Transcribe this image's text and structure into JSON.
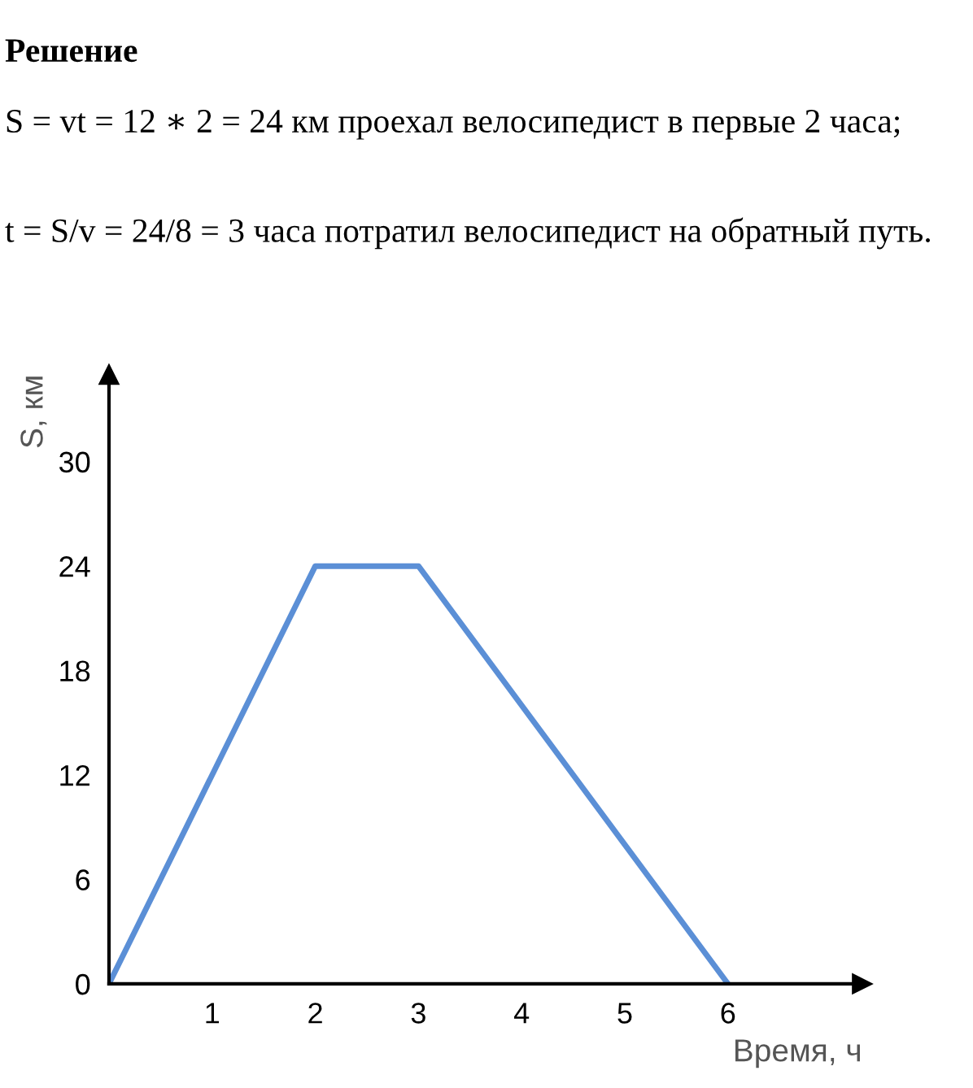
{
  "chart_data": {
    "type": "line",
    "title": "Решение",
    "annotations": [
      "S = vt = 12 ∗ 2 = 24 км проехал велосипедист в первые 2 часа;",
      "t = S/v = 24/8 = 3 часа потратил велосипедист на обратный путь."
    ],
    "x": [
      0,
      2,
      3,
      6
    ],
    "series": [
      {
        "color": "#5b8fd6",
        "values": [
          0,
          24,
          24,
          0
        ]
      }
    ],
    "xlabel": "Время, ч",
    "ylabel": "S, км",
    "xlim": [
      0,
      7.3
    ],
    "ylim": [
      0,
      35
    ],
    "xticks": [
      1,
      2,
      3,
      4,
      5,
      6
    ],
    "yticks": [
      0,
      6,
      12,
      18,
      24,
      30
    ],
    "grid": false,
    "marker": "none",
    "line_style": "solid"
  }
}
